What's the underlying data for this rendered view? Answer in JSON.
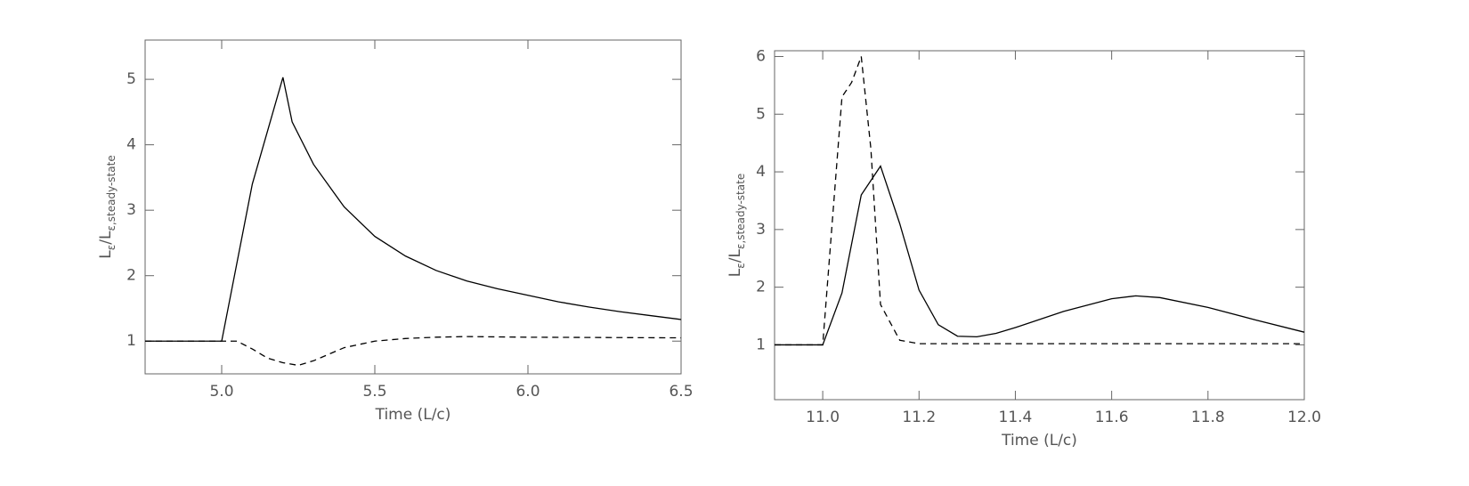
{
  "chart_data": [
    {
      "type": "line",
      "x_label": "Time (L/c)",
      "y_label": [
        "L",
        "ε",
        "/L",
        "ε,steady-state"
      ],
      "xlim": [
        4.75,
        6.5
      ],
      "xticks": [
        {
          "value": 5,
          "label": "5.0"
        },
        5.5,
        {
          "value": 6,
          "label": "6.0"
        },
        6.5
      ],
      "ylim": [
        0.5,
        5.6
      ],
      "yticks": [
        1,
        2,
        3,
        4,
        5
      ],
      "series": [
        {
          "color": "#000000",
          "line_style": "solid",
          "x": [
            4.75,
            5.0,
            5.1,
            5.2,
            5.23,
            5.3,
            5.4,
            5.5,
            5.6,
            5.7,
            5.8,
            5.9,
            6.0,
            6.1,
            6.2,
            6.3,
            6.4,
            6.5
          ],
          "values": [
            1,
            1,
            3.4,
            5.03,
            4.35,
            3.7,
            3.05,
            2.6,
            2.3,
            2.08,
            1.92,
            1.8,
            1.7,
            1.6,
            1.52,
            1.45,
            1.39,
            1.33
          ]
        },
        {
          "color": "#000000",
          "line_style": "dashed",
          "x": [
            4.75,
            5.0,
            5.05,
            5.1,
            5.15,
            5.2,
            5.25,
            5.3,
            5.4,
            5.5,
            5.6,
            5.7,
            5.8,
            6.0,
            6.5
          ],
          "values": [
            1,
            1,
            1.0,
            0.88,
            0.74,
            0.67,
            0.63,
            0.7,
            0.9,
            1.0,
            1.04,
            1.06,
            1.07,
            1.06,
            1.05
          ]
        }
      ]
    },
    {
      "type": "line",
      "x_label": "Time (L/c)",
      "y_label": [
        "L",
        "ε",
        "/L",
        "ε,steady-state"
      ],
      "xlim": [
        10.9,
        12.0
      ],
      "xticks": [
        {
          "value": 11,
          "label": "11.0"
        },
        11.2,
        11.4,
        11.6,
        11.8,
        {
          "value": 12,
          "label": "12.0"
        }
      ],
      "ylim": [
        0.05,
        6.1
      ],
      "yticks": [
        1,
        2,
        3,
        4,
        5,
        6
      ],
      "series": [
        {
          "color": "#000000",
          "line_style": "solid",
          "x": [
            10.9,
            11.0,
            11.04,
            11.08,
            11.12,
            11.16,
            11.2,
            11.24,
            11.28,
            11.32,
            11.36,
            11.4,
            11.5,
            11.6,
            11.65,
            11.7,
            11.8,
            11.9,
            12.0
          ],
          "values": [
            1,
            1,
            1.9,
            3.6,
            4.1,
            3.1,
            1.95,
            1.35,
            1.15,
            1.14,
            1.2,
            1.3,
            1.58,
            1.8,
            1.85,
            1.82,
            1.65,
            1.43,
            1.22
          ]
        },
        {
          "color": "#000000",
          "line_style": "dashed",
          "x": [
            10.9,
            11.0,
            11.04,
            11.06,
            11.08,
            11.1,
            11.12,
            11.16,
            11.2,
            12.0
          ],
          "values": [
            1,
            1,
            5.3,
            5.55,
            6.0,
            4.4,
            1.7,
            1.08,
            1.02,
            1.02
          ]
        }
      ]
    }
  ]
}
